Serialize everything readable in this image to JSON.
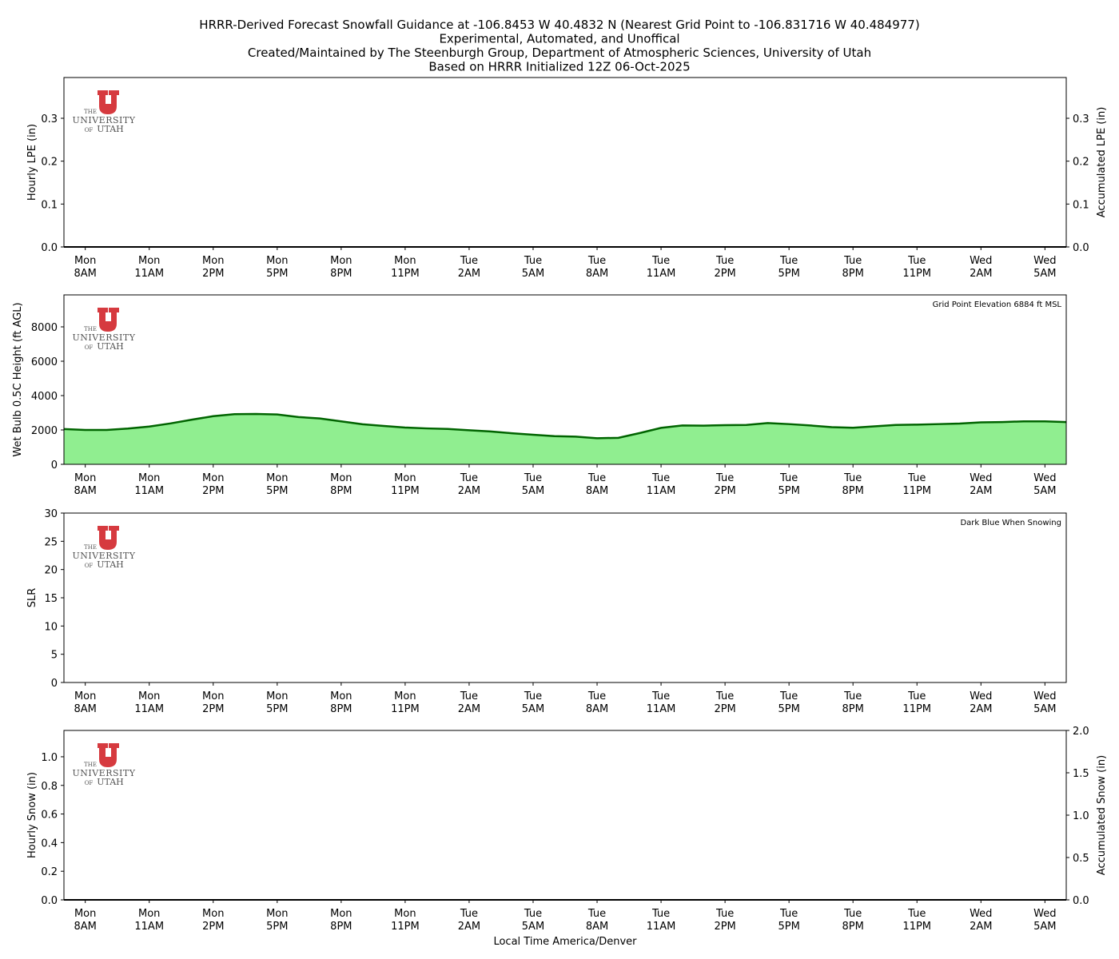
{
  "title_lines": [
    "HRRR-Derived Forecast Snowfall Guidance at -106.8453 W 40.4832 N (Nearest Grid Point to -106.831716 W 40.484977)",
    "Experimental, Automated, and Unoffical",
    "Created/Maintained by The Steenburgh Group, Department of Atmospheric Sciences, University of Utah",
    "Based on HRRR Initialized 12Z 06-Oct-2025"
  ],
  "logo": {
    "the": "THE",
    "name": "UNIVERSITY",
    "of": "OF",
    "utah": "UTAH"
  },
  "chart_data": [
    {
      "type": "line",
      "ylabel": "Hourly LPE (in)",
      "y2label": "Accumulated LPE (in)",
      "categories": [
        null,
        "Mon\n8AM",
        null,
        null,
        "Mon\n11AM",
        null,
        null,
        "Mon\n2PM",
        null,
        null,
        "Mon\n5PM",
        null,
        null,
        "Mon\n8PM",
        null,
        null,
        "Mon\n11PM",
        null,
        null,
        "Tue\n2AM",
        null,
        null,
        "Tue\n5AM",
        null,
        null,
        "Tue\n8AM",
        null,
        null,
        "Tue\n11AM",
        null,
        null,
        "Tue\n2PM",
        null,
        null,
        "Tue\n5PM",
        null,
        null,
        "Tue\n8PM",
        null,
        null,
        "Tue\n11PM",
        null,
        null,
        "Wed\n2AM",
        null,
        null,
        "Wed\n5AM",
        null
      ],
      "ylim": [
        0,
        0.395
      ],
      "yticks": [
        {
          "value": 0,
          "label": "0.0"
        },
        0.1,
        0.2,
        0.3
      ],
      "y2lim": [
        0,
        0.395
      ],
      "y2ticks": [
        {
          "value": 0,
          "label": "0.0"
        },
        0.1,
        0.2,
        0.3
      ],
      "series": [
        {
          "color": "#000000",
          "axis": "y2",
          "values": [
            0,
            0,
            0,
            0,
            0,
            0,
            0,
            0,
            0,
            0,
            0,
            0,
            0,
            0,
            0,
            0,
            0,
            0,
            0,
            0,
            0,
            0,
            0,
            0,
            0,
            0,
            0,
            0,
            0,
            0,
            0,
            0,
            0,
            0,
            0,
            0,
            0,
            0,
            0,
            0,
            0,
            0,
            0,
            0,
            0,
            0,
            0,
            0
          ]
        }
      ]
    },
    {
      "type": "area",
      "ylabel": "Wet Bulb 0.5C Height (ft AGL)",
      "annotation": "Grid Point Elevation 6884 ft MSL",
      "categories": [
        null,
        "Mon\n8AM",
        null,
        null,
        "Mon\n11AM",
        null,
        null,
        "Mon\n2PM",
        null,
        null,
        "Mon\n5PM",
        null,
        null,
        "Mon\n8PM",
        null,
        null,
        "Mon\n11PM",
        null,
        null,
        "Tue\n2AM",
        null,
        null,
        "Tue\n5AM",
        null,
        null,
        "Tue\n8AM",
        null,
        null,
        "Tue\n11AM",
        null,
        null,
        "Tue\n2PM",
        null,
        null,
        "Tue\n5PM",
        null,
        null,
        "Tue\n8PM",
        null,
        null,
        "Tue\n11PM",
        null,
        null,
        "Wed\n2AM",
        null,
        null,
        "Wed\n5AM",
        null
      ],
      "ylim": [
        0,
        9860
      ],
      "yticks": [
        0,
        2000,
        4000,
        6000,
        8000
      ],
      "series": [
        {
          "color": "#006400",
          "fill": "#90ee90",
          "values": [
            2050,
            2000,
            2000,
            2080,
            2200,
            2380,
            2600,
            2800,
            2920,
            2930,
            2900,
            2750,
            2670,
            2500,
            2330,
            2230,
            2140,
            2090,
            2060,
            1980,
            1910,
            1810,
            1720,
            1640,
            1610,
            1520,
            1540,
            1820,
            2120,
            2260,
            2250,
            2280,
            2290,
            2400,
            2340,
            2260,
            2160,
            2130,
            2210,
            2290,
            2310,
            2340,
            2370,
            2440,
            2460,
            2500,
            2500,
            2460
          ]
        }
      ]
    },
    {
      "type": "line",
      "ylabel": "SLR",
      "annotation": "Dark Blue When Snowing",
      "categories": [
        null,
        "Mon\n8AM",
        null,
        null,
        "Mon\n11AM",
        null,
        null,
        "Mon\n2PM",
        null,
        null,
        "Mon\n5PM",
        null,
        null,
        "Mon\n8PM",
        null,
        null,
        "Mon\n11PM",
        null,
        null,
        "Tue\n2AM",
        null,
        null,
        "Tue\n5AM",
        null,
        null,
        "Tue\n8AM",
        null,
        null,
        "Tue\n11AM",
        null,
        null,
        "Tue\n2PM",
        null,
        null,
        "Tue\n5PM",
        null,
        null,
        "Tue\n8PM",
        null,
        null,
        "Tue\n11PM",
        null,
        null,
        "Wed\n2AM",
        null,
        null,
        "Wed\n5AM",
        null
      ],
      "ylim": [
        0,
        30
      ],
      "yticks": [
        0,
        5,
        10,
        15,
        20,
        25,
        30
      ]
    },
    {
      "type": "line",
      "ylabel": "Hourly Snow (in)",
      "y2label": "Accumulated Snow (in)",
      "xlabel": "Local Time America/Denver",
      "categories": [
        null,
        "Mon\n8AM",
        null,
        null,
        "Mon\n11AM",
        null,
        null,
        "Mon\n2PM",
        null,
        null,
        "Mon\n5PM",
        null,
        null,
        "Mon\n8PM",
        null,
        null,
        "Mon\n11PM",
        null,
        null,
        "Tue\n2AM",
        null,
        null,
        "Tue\n5AM",
        null,
        null,
        "Tue\n8AM",
        null,
        null,
        "Tue\n11AM",
        null,
        null,
        "Tue\n2PM",
        null,
        null,
        "Tue\n5PM",
        null,
        null,
        "Tue\n8PM",
        null,
        null,
        "Tue\n11PM",
        null,
        null,
        "Wed\n2AM",
        null,
        null,
        "Wed\n5AM",
        null
      ],
      "ylim": [
        0,
        1.184
      ],
      "yticks": [
        {
          "value": 0,
          "label": "0.0"
        },
        0.2,
        0.4,
        0.6,
        0.8,
        {
          "value": 1,
          "label": "1.0"
        }
      ],
      "y2lim": [
        0,
        2
      ],
      "y2ticks": [
        {
          "value": 0,
          "label": "0.0"
        },
        0.5,
        {
          "value": 1,
          "label": "1.0"
        },
        1.5,
        {
          "value": 2,
          "label": "2.0"
        }
      ],
      "series": [
        {
          "color": "#000000",
          "axis": "y2",
          "values": [
            0,
            0,
            0,
            0,
            0,
            0,
            0,
            0,
            0,
            0,
            0,
            0,
            0,
            0,
            0,
            0,
            0,
            0,
            0,
            0,
            0,
            0,
            0,
            0,
            0,
            0,
            0,
            0,
            0,
            0,
            0,
            0,
            0,
            0,
            0,
            0,
            0,
            0,
            0,
            0,
            0,
            0,
            0,
            0,
            0,
            0,
            0,
            0
          ]
        }
      ]
    }
  ]
}
